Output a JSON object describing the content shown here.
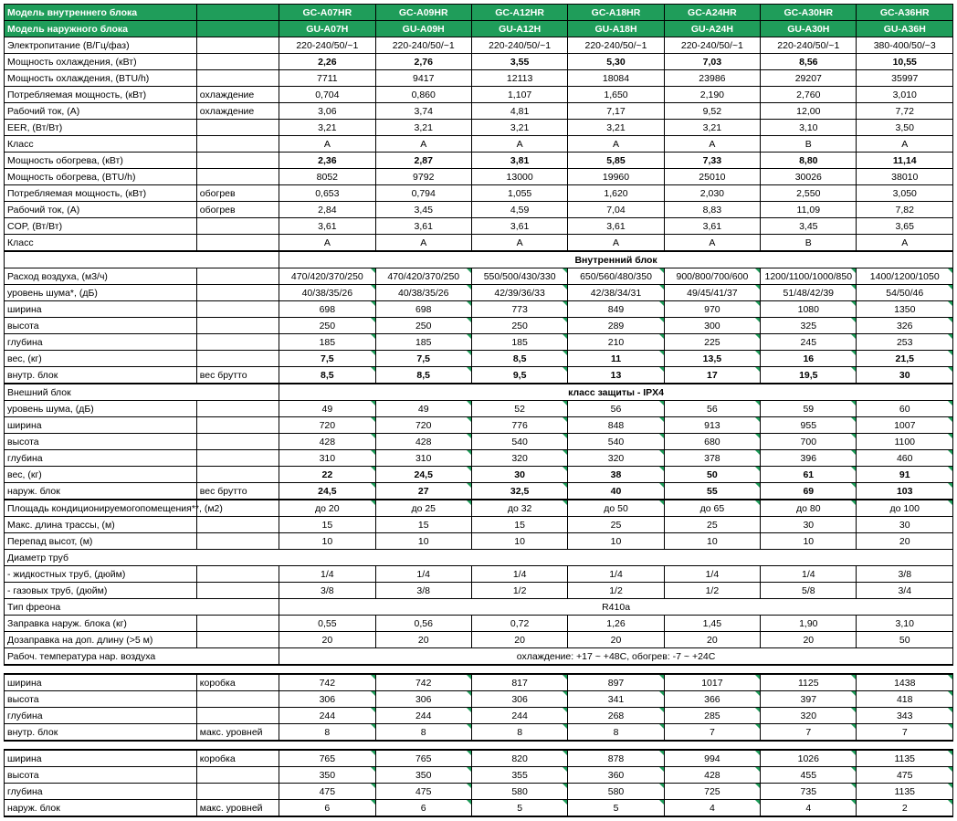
{
  "colors": {
    "header_bg": "#1f9d5a",
    "header_fg": "#ffffff",
    "line": "#000000",
    "mark": "#1f9d5a"
  },
  "header1": {
    "label": "Модель внутреннего блока",
    "models": [
      "GC-A07HR",
      "GC-A09HR",
      "GC-A12HR",
      "GC-A18HR",
      "GC-A24HR",
      "GC-A30HR",
      "GC-A36HR"
    ]
  },
  "header2": {
    "label": "Модель наружного блока",
    "models": [
      "GU-A07H",
      "GU-A09H",
      "GU-A12H",
      "GU-A18H",
      "GU-A24H",
      "GU-A30H",
      "GU-A36H"
    ]
  },
  "rows": [
    {
      "label": "Электропитание (В/Гц/фаз)",
      "sub": "",
      "v": [
        "220-240/50/~1",
        "220-240/50/~1",
        "220-240/50/~1",
        "220-240/50/~1",
        "220-240/50/~1",
        "220-240/50/~1",
        "380-400/50/~3"
      ]
    },
    {
      "label": "Мощность охлаждения, (кВт)",
      "sub": "",
      "bold": true,
      "v": [
        "2,26",
        "2,76",
        "3,55",
        "5,30",
        "7,03",
        "8,56",
        "10,55"
      ]
    },
    {
      "label": "Мощность охлаждения, (BTU/h)",
      "sub": "",
      "v": [
        "7711",
        "9417",
        "12113",
        "18084",
        "23986",
        "29207",
        "35997"
      ]
    },
    {
      "label": "Потребляемая мощность, (кВт)",
      "sub": "охлаждение",
      "v": [
        "0,704",
        "0,860",
        "1,107",
        "1,650",
        "2,190",
        "2,760",
        "3,010"
      ]
    },
    {
      "label": "Рабочий ток, (А)",
      "sub": "охлаждение",
      "v": [
        "3,06",
        "3,74",
        "4,81",
        "7,17",
        "9,52",
        "12,00",
        "7,72"
      ]
    },
    {
      "label": "EER, (Вт/Вт)",
      "sub": "",
      "v": [
        "3,21",
        "3,21",
        "3,21",
        "3,21",
        "3,21",
        "3,10",
        "3,50"
      ]
    },
    {
      "label": "Класс",
      "sub": "",
      "v": [
        "A",
        "A",
        "A",
        "A",
        "A",
        "B",
        "A"
      ]
    },
    {
      "label": "Мощность обогрева, (кВт)",
      "sub": "",
      "bold": true,
      "v": [
        "2,36",
        "2,87",
        "3,81",
        "5,85",
        "7,33",
        "8,80",
        "11,14"
      ]
    },
    {
      "label": "Мощность обогрева, (BTU/h)",
      "sub": "",
      "v": [
        "8052",
        "9792",
        "13000",
        "19960",
        "25010",
        "30026",
        "38010"
      ]
    },
    {
      "label": "Потребляемая мощность, (кВт)",
      "sub": "обогрев",
      "v": [
        "0,653",
        "0,794",
        "1,055",
        "1,620",
        "2,030",
        "2,550",
        "3,050"
      ]
    },
    {
      "label": "Рабочий ток, (А)",
      "sub": "обогрев",
      "v": [
        "2,84",
        "3,45",
        "4,59",
        "7,04",
        "8,83",
        "11,09",
        "7,82"
      ]
    },
    {
      "label": "COP, (Вт/Вт)",
      "sub": "",
      "v": [
        "3,61",
        "3,61",
        "3,61",
        "3,61",
        "3,61",
        "3,45",
        "3,65"
      ]
    },
    {
      "label": "Класс",
      "sub": "",
      "v": [
        "A",
        "A",
        "A",
        "A",
        "A",
        "B",
        "A"
      ],
      "thickbot": true
    }
  ],
  "sec_indoor": "Внутренний блок",
  "indoor": [
    {
      "label": "Расход воздуха, (м3/ч)",
      "sub": "",
      "mark": true,
      "v": [
        "470/420/370/250",
        "470/420/370/250",
        "550/500/430/330",
        "650/560/480/350",
        "900/800/700/600",
        "1200/1100/1000/850",
        "1400/1200/1050"
      ]
    },
    {
      "label": "уровень шума*, (дБ)",
      "sub": "",
      "mark": true,
      "v": [
        "40/38/35/26",
        "40/38/35/26",
        "42/39/36/33",
        "42/38/34/31",
        "49/45/41/37",
        "51/48/42/39",
        "54/50/46"
      ]
    },
    {
      "label": "ширина",
      "sub": "",
      "mark": true,
      "v": [
        "698",
        "698",
        "773",
        "849",
        "970",
        "1080",
        "1350"
      ]
    },
    {
      "label": "высота",
      "sub": "",
      "mark": true,
      "v": [
        "250",
        "250",
        "250",
        "289",
        "300",
        "325",
        "326"
      ]
    },
    {
      "label": "глубина",
      "sub": "",
      "mark": true,
      "v": [
        "185",
        "185",
        "185",
        "210",
        "225",
        "245",
        "253"
      ]
    },
    {
      "label": "вес, (кг)",
      "sub": "",
      "bold": true,
      "mark": true,
      "v": [
        "7,5",
        "7,5",
        "8,5",
        "11",
        "13,5",
        "16",
        "21,5"
      ]
    },
    {
      "label": "внутр. блок",
      "sub": "вес брутто",
      "bold": true,
      "mark": true,
      "v": [
        "8,5",
        "8,5",
        "9,5",
        "13",
        "17",
        "19,5",
        "30"
      ],
      "thickbot": true
    }
  ],
  "sec_outdoor_left": "Внешний блок",
  "sec_outdoor_right": "класс защиты - IPX4",
  "outdoor": [
    {
      "label": "уровень шума, (дБ)",
      "sub": "",
      "mark": true,
      "v": [
        "49",
        "49",
        "52",
        "56",
        "56",
        "59",
        "60"
      ]
    },
    {
      "label": "ширина",
      "sub": "",
      "mark": true,
      "v": [
        "720",
        "720",
        "776",
        "848",
        "913",
        "955",
        "1007"
      ]
    },
    {
      "label": "высота",
      "sub": "",
      "mark": true,
      "v": [
        "428",
        "428",
        "540",
        "540",
        "680",
        "700",
        "1100"
      ]
    },
    {
      "label": "глубина",
      "sub": "",
      "mark": true,
      "v": [
        "310",
        "310",
        "320",
        "320",
        "378",
        "396",
        "460"
      ]
    },
    {
      "label": "вес, (кг)",
      "sub": "",
      "bold": true,
      "mark": true,
      "v": [
        "22",
        "24,5",
        "30",
        "38",
        "50",
        "61",
        "91"
      ]
    },
    {
      "label": "наруж. блок",
      "sub": "вес брутто",
      "bold": true,
      "mark": true,
      "v": [
        "24,5",
        "27",
        "32,5",
        "40",
        "55",
        "69",
        "103"
      ],
      "thickbot": true
    }
  ],
  "misc": [
    {
      "label": "Площадь кондиционируемогопомещения**, (м2)",
      "sub": "",
      "mark": true,
      "v": [
        "до 20",
        "до 25",
        "до 32",
        "до 50",
        "до 65",
        "до 80",
        "до 100"
      ]
    },
    {
      "label": "Макс. длина трассы, (м)",
      "sub": "",
      "v": [
        "15",
        "15",
        "15",
        "25",
        "25",
        "30",
        "30"
      ]
    },
    {
      "label": "Перепад высот, (м)",
      "sub": "",
      "v": [
        "10",
        "10",
        "10",
        "10",
        "10",
        "10",
        "20"
      ]
    }
  ],
  "pipes_title": "Диаметр труб",
  "pipes": [
    {
      "label": "- жидкостных труб, (дюйм)",
      "sub": "",
      "v": [
        "1/4",
        "1/4",
        "1/4",
        "1/4",
        "1/4",
        "1/4",
        "3/8"
      ]
    },
    {
      "label": "- газовых труб, (дюйм)",
      "sub": "",
      "v": [
        "3/8",
        "3/8",
        "1/2",
        "1/2",
        "1/2",
        "5/8",
        "3/4"
      ]
    }
  ],
  "freon_label": "Тип фреона",
  "freon_value": "R410a",
  "misc2": [
    {
      "label": "Заправка наруж. блока (кг)",
      "sub": "",
      "v": [
        "0,55",
        "0,56",
        "0,72",
        "1,26",
        "1,45",
        "1,90",
        "3,10"
      ]
    },
    {
      "label": "Дозаправка на доп. длину (>5 м)",
      "sub": "",
      "v": [
        "20",
        "20",
        "20",
        "20",
        "20",
        "20",
        "50"
      ]
    }
  ],
  "temp_label": "Рабоч. температура нар. воздуха",
  "temp_value": "охлаждение: +17 ~ +48C, обогрев: -7 ~ +24C",
  "box1": [
    {
      "label": "ширина",
      "sub": "коробка",
      "mark": true,
      "v": [
        "742",
        "742",
        "817",
        "897",
        "1017",
        "1125",
        "1438"
      ]
    },
    {
      "label": "высота",
      "sub": "",
      "mark": true,
      "v": [
        "306",
        "306",
        "306",
        "341",
        "366",
        "397",
        "418"
      ]
    },
    {
      "label": "глубина",
      "sub": "",
      "mark": true,
      "v": [
        "244",
        "244",
        "244",
        "268",
        "285",
        "320",
        "343"
      ]
    },
    {
      "label": "внутр. блок",
      "sub": "макс. уровней",
      "mark": true,
      "v": [
        "8",
        "8",
        "8",
        "8",
        "7",
        "7",
        "7"
      ],
      "thickbot": true
    }
  ],
  "box2": [
    {
      "label": "ширина",
      "sub": "коробка",
      "mark": true,
      "v": [
        "765",
        "765",
        "820",
        "878",
        "994",
        "1026",
        "1135"
      ]
    },
    {
      "label": "высота",
      "sub": "",
      "mark": true,
      "v": [
        "350",
        "350",
        "355",
        "360",
        "428",
        "455",
        "475"
      ]
    },
    {
      "label": "глубина",
      "sub": "",
      "mark": true,
      "v": [
        "475",
        "475",
        "580",
        "580",
        "725",
        "735",
        "1135"
      ]
    },
    {
      "label": "наруж. блок",
      "sub": "макс. уровней",
      "mark": true,
      "v": [
        "6",
        "6",
        "5",
        "5",
        "4",
        "4",
        "2"
      ],
      "thickbot": true
    }
  ]
}
